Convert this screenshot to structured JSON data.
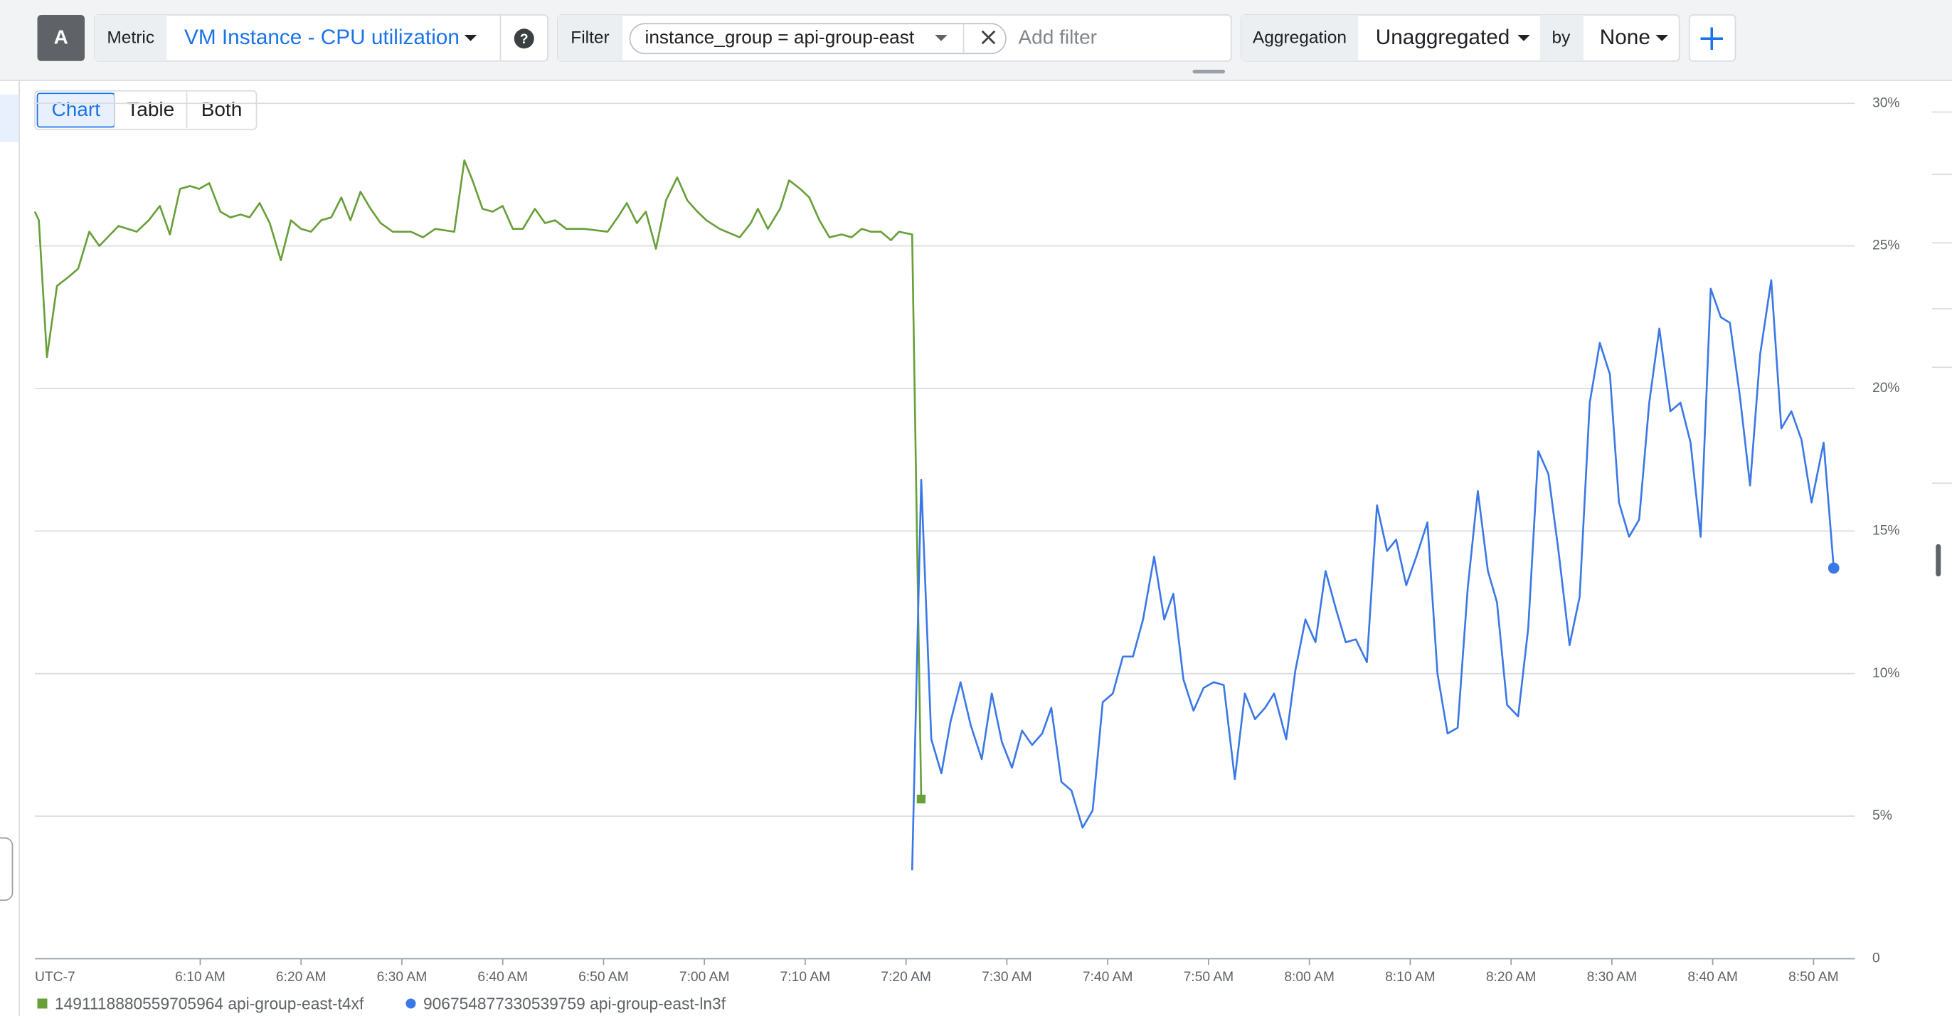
{
  "toolbar": {
    "query_letter": "A",
    "metric_label": "Metric",
    "metric": "VM Instance - CPU utilization",
    "filter_label": "Filter",
    "filter_chip": "instance_group = api-group-east",
    "add_filter": "Add filter",
    "aggregation_label": "Aggregation",
    "aggregation": "Unaggregated",
    "by_label": "by",
    "group_by": "None"
  },
  "view_tabs": [
    "Chart",
    "Table",
    "Both"
  ],
  "chart_data": {
    "type": "line",
    "timezone": "UTC-7",
    "xlim": [
      353.6,
      534.1
    ],
    "xticks": [
      {
        "value": 370,
        "label": "6:10 AM"
      },
      {
        "value": 380,
        "label": "6:20 AM"
      },
      {
        "value": 390,
        "label": "6:30 AM"
      },
      {
        "value": 400,
        "label": "6:40 AM"
      },
      {
        "value": 410,
        "label": "6:50 AM"
      },
      {
        "value": 420,
        "label": "7:00 AM"
      },
      {
        "value": 430,
        "label": "7:10 AM"
      },
      {
        "value": 440,
        "label": "7:20 AM"
      },
      {
        "value": 450,
        "label": "7:30 AM"
      },
      {
        "value": 460,
        "label": "7:40 AM"
      },
      {
        "value": 470,
        "label": "7:50 AM"
      },
      {
        "value": 480,
        "label": "8:00 AM"
      },
      {
        "value": 490,
        "label": "8:10 AM"
      },
      {
        "value": 500,
        "label": "8:20 AM"
      },
      {
        "value": 510,
        "label": "8:30 AM"
      },
      {
        "value": 520,
        "label": "8:40 AM"
      },
      {
        "value": 530,
        "label": "8:50 AM"
      }
    ],
    "ylim": [
      0,
      30
    ],
    "yticks": [
      0,
      {
        "value": 5,
        "label": "5%"
      },
      {
        "value": 10,
        "label": "10%"
      },
      {
        "value": 15,
        "label": "15%"
      },
      {
        "value": 20,
        "label": "20%"
      },
      {
        "value": 25,
        "label": "25%"
      },
      {
        "value": 30,
        "label": "30%"
      }
    ],
    "grid": true,
    "series": [
      {
        "name": "1491118880559705964 api-group-east-t4xf",
        "color": "#689f38",
        "x": [
          353.6,
          354.0,
          354.8,
          355.8,
          356.9,
          357.9,
          359.0,
          360.0,
          361.9,
          363.7,
          364.9,
          366.0,
          367.0,
          368.0,
          369.0,
          369.9,
          370.9,
          372.0,
          373.0,
          374.0,
          374.9,
          375.9,
          376.9,
          378.0,
          379.0,
          380.0,
          381.0,
          382.0,
          383.0,
          384.0,
          384.9,
          385.9,
          386.9,
          387.9,
          389.1,
          390.9,
          392.1,
          393.3,
          395.2,
          396.2,
          397.0,
          398.0,
          399.0,
          400.0,
          401.0,
          402.0,
          403.2,
          404.2,
          405.2,
          406.3,
          408.1,
          410.4,
          411.4,
          412.3,
          413.3,
          414.2,
          415.2,
          416.2,
          417.3,
          418.3,
          419.3,
          420.2,
          421.5,
          423.5,
          424.6,
          425.3,
          426.3,
          427.5,
          428.4,
          429.5,
          430.4,
          431.4,
          432.4,
          433.6,
          434.6,
          435.6,
          436.5,
          437.5,
          438.5,
          439.3,
          440.6,
          441.5
        ],
        "values": [
          26.2,
          25.9,
          21.1,
          23.6,
          23.9,
          24.2,
          25.5,
          25.0,
          25.7,
          25.5,
          25.9,
          26.4,
          25.4,
          27.0,
          27.1,
          27.0,
          27.2,
          26.2,
          26.0,
          26.1,
          26.0,
          26.5,
          25.8,
          24.5,
          25.9,
          25.6,
          25.5,
          25.9,
          26.0,
          26.7,
          25.9,
          26.9,
          26.3,
          25.8,
          25.5,
          25.5,
          25.3,
          25.6,
          25.5,
          28.0,
          27.3,
          26.3,
          26.2,
          26.4,
          25.6,
          25.6,
          26.3,
          25.8,
          25.9,
          25.6,
          25.6,
          25.5,
          26.0,
          26.5,
          25.8,
          26.2,
          24.9,
          26.6,
          27.4,
          26.6,
          26.2,
          25.9,
          25.6,
          25.3,
          25.8,
          26.3,
          25.6,
          26.3,
          27.3,
          27.0,
          26.7,
          25.9,
          25.3,
          25.4,
          25.3,
          25.6,
          25.5,
          25.5,
          25.2,
          25.5,
          25.4,
          5.6
        ]
      },
      {
        "name": "906754877330539759 api-group-east-ln3f",
        "color": "#3b78e7",
        "x": [
          440.6,
          441.5,
          442.5,
          443.5,
          444.4,
          445.4,
          446.4,
          447.5,
          448.5,
          449.5,
          450.5,
          451.5,
          452.5,
          453.5,
          454.4,
          455.4,
          456.4,
          457.5,
          458.5,
          459.5,
          460.5,
          461.5,
          462.5,
          463.5,
          464.6,
          465.6,
          466.5,
          467.5,
          468.5,
          469.5,
          470.5,
          471.5,
          472.6,
          473.6,
          474.6,
          475.6,
          476.5,
          477.7,
          478.6,
          479.6,
          480.6,
          481.6,
          482.6,
          483.6,
          484.6,
          485.7,
          486.7,
          487.7,
          488.6,
          489.6,
          490.6,
          491.7,
          492.7,
          493.7,
          494.7,
          495.7,
          496.7,
          497.7,
          498.6,
          499.6,
          500.7,
          501.7,
          502.7,
          503.7,
          504.7,
          505.8,
          506.8,
          507.8,
          508.8,
          509.8,
          510.7,
          511.7,
          512.7,
          513.7,
          514.7,
          515.8,
          516.8,
          517.8,
          518.8,
          519.8,
          520.8,
          521.7,
          522.7,
          523.7,
          524.7,
          525.8,
          526.8,
          527.8,
          528.8,
          529.8,
          531.0,
          532.0
        ],
        "values": [
          3.1,
          16.8,
          7.7,
          6.5,
          8.3,
          9.7,
          8.2,
          7.0,
          9.3,
          7.6,
          6.7,
          8.0,
          7.5,
          7.9,
          8.8,
          6.2,
          5.9,
          4.6,
          5.2,
          9.0,
          9.3,
          10.6,
          10.6,
          11.9,
          14.1,
          11.9,
          12.8,
          9.8,
          8.7,
          9.5,
          9.7,
          9.6,
          6.3,
          9.3,
          8.4,
          8.8,
          9.3,
          7.7,
          10.1,
          11.9,
          11.1,
          13.6,
          12.3,
          11.1,
          11.2,
          10.4,
          15.9,
          14.3,
          14.7,
          13.1,
          14.1,
          15.3,
          10.0,
          7.9,
          8.1,
          13.0,
          16.4,
          13.6,
          12.5,
          8.9,
          8.5,
          11.6,
          17.8,
          17.0,
          14.3,
          11.0,
          12.7,
          19.5,
          21.6,
          20.5,
          16.0,
          14.8,
          15.4,
          19.5,
          22.1,
          19.2,
          19.5,
          18.1,
          14.8,
          23.5,
          22.5,
          22.3,
          19.7,
          16.6,
          21.2,
          23.8,
          18.6,
          19.2,
          18.2,
          16.0,
          18.1,
          13.7
        ]
      }
    ]
  }
}
